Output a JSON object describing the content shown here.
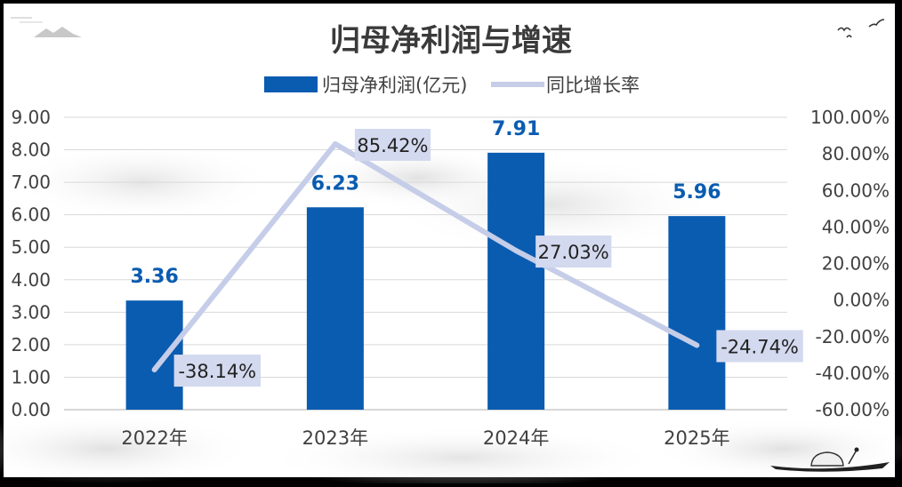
{
  "chart_data": {
    "type": "bar",
    "title": "归母净利润与增速",
    "categories": [
      "2022年",
      "2023年",
      "2024年",
      "2025年"
    ],
    "series": [
      {
        "name": "归母净利润(亿元)",
        "type": "bar",
        "axis": "left",
        "values": [
          3.36,
          6.23,
          7.91,
          5.96
        ],
        "labels": [
          "3.36",
          "6.23",
          "7.91",
          "5.96"
        ],
        "color": "#0a5cb0"
      },
      {
        "name": "同比增长率",
        "type": "line",
        "axis": "right",
        "values": [
          -38.14,
          85.42,
          27.03,
          -24.74
        ],
        "labels": [
          "-38.14%",
          "85.42%",
          "27.03%",
          "-24.74%"
        ],
        "color": "#c5cde8"
      }
    ],
    "y_left": {
      "min": 0,
      "max": 9,
      "step": 1,
      "ticks": [
        "0.00",
        "1.00",
        "2.00",
        "3.00",
        "4.00",
        "5.00",
        "6.00",
        "7.00",
        "8.00",
        "9.00"
      ]
    },
    "y_right": {
      "min": -60,
      "max": 100,
      "step": 20,
      "ticks": [
        "-60.00%",
        "-40.00%",
        "-20.00%",
        "0.00%",
        "20.00%",
        "40.00%",
        "60.00%",
        "80.00%",
        "100.00%"
      ]
    },
    "legend_position": "top-center",
    "grid": true,
    "colors": {
      "bar": "#0a5cb0",
      "line": "#c5cde8",
      "label_box": "#d3d9ee",
      "title": "#3a3a3a",
      "axis_text": "#404040",
      "grid": "#d9d9d9",
      "background": "#ffffff"
    }
  }
}
